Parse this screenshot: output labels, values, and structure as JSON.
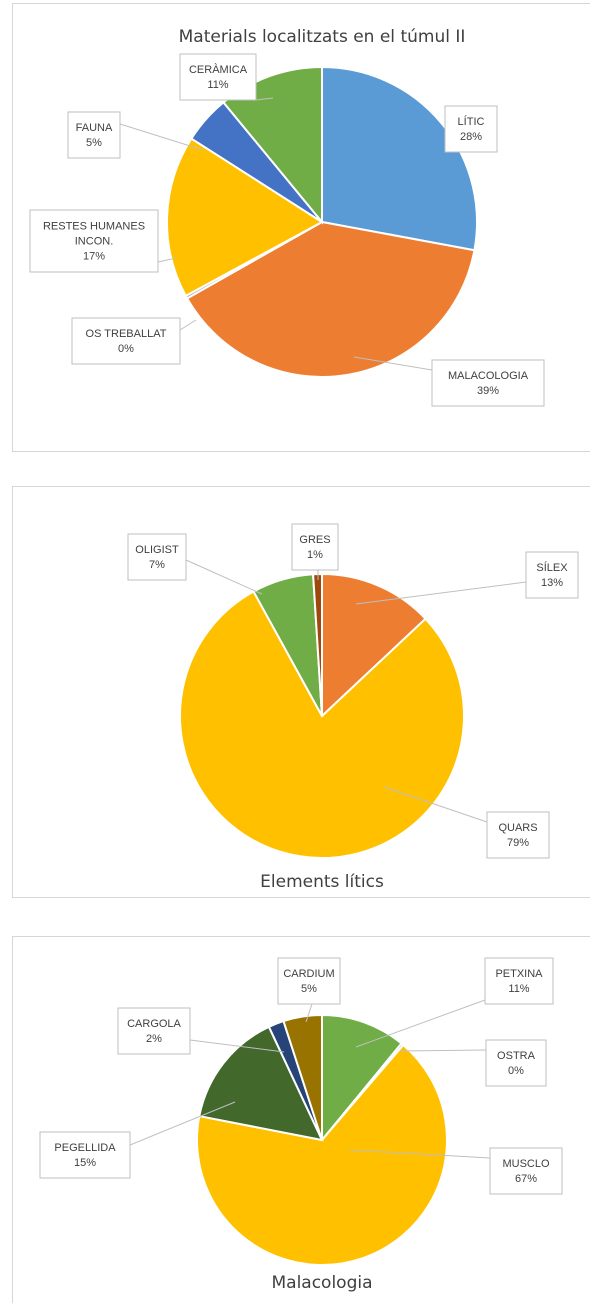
{
  "chart_data": [
    {
      "type": "pie",
      "title": "Materials localitzats en el túmul II",
      "slices": [
        {
          "label": "LÍTIC",
          "pct": "28%",
          "value": 28,
          "color": "#5B9BD5"
        },
        {
          "label": "MALACOLOGIA",
          "pct": "39%",
          "value": 39,
          "color": "#ED7D31"
        },
        {
          "label": "OS TREBALLAT",
          "pct": "0%",
          "value": 0.3,
          "color": "#A5A5A5"
        },
        {
          "label": "RESTES HUMANES INCON.",
          "label_lines": [
            "RESTES HUMANES",
            "INCON."
          ],
          "pct": "17%",
          "value": 17,
          "color": "#FFC000"
        },
        {
          "label": "FAUNA",
          "pct": "5%",
          "value": 5,
          "color": "#4472C4"
        },
        {
          "label": "CERÀMICA",
          "pct": "11%",
          "value": 11,
          "color": "#70AD47"
        }
      ]
    },
    {
      "type": "pie",
      "title": "Elements lítics",
      "slices": [
        {
          "label": "SÍLEX",
          "pct": "13%",
          "value": 13,
          "color": "#ED7D31"
        },
        {
          "label": "QUARS",
          "pct": "79%",
          "value": 79,
          "color": "#FFC000"
        },
        {
          "label": "OLIGIST",
          "pct": "7%",
          "value": 7,
          "color": "#70AD47"
        },
        {
          "label": "GRES",
          "pct": "1%",
          "value": 1,
          "color": "#9E480E"
        }
      ]
    },
    {
      "type": "pie",
      "title": "Malacologia",
      "slices": [
        {
          "label": "PETXINA",
          "pct": "11%",
          "value": 11,
          "color": "#70AD47"
        },
        {
          "label": "OSTRA",
          "pct": "0%",
          "value": 0.3,
          "color": "#A5A5A5"
        },
        {
          "label": "MUSCLO",
          "pct": "67%",
          "value": 67,
          "color": "#FFC000"
        },
        {
          "label": "PEGELLIDA",
          "pct": "15%",
          "value": 15,
          "color": "#43682B"
        },
        {
          "label": "CARGOLA",
          "pct": "2%",
          "value": 2,
          "color": "#264478"
        },
        {
          "label": "CARDIUM",
          "pct": "5%",
          "value": 5,
          "color": "#997300"
        }
      ]
    }
  ]
}
